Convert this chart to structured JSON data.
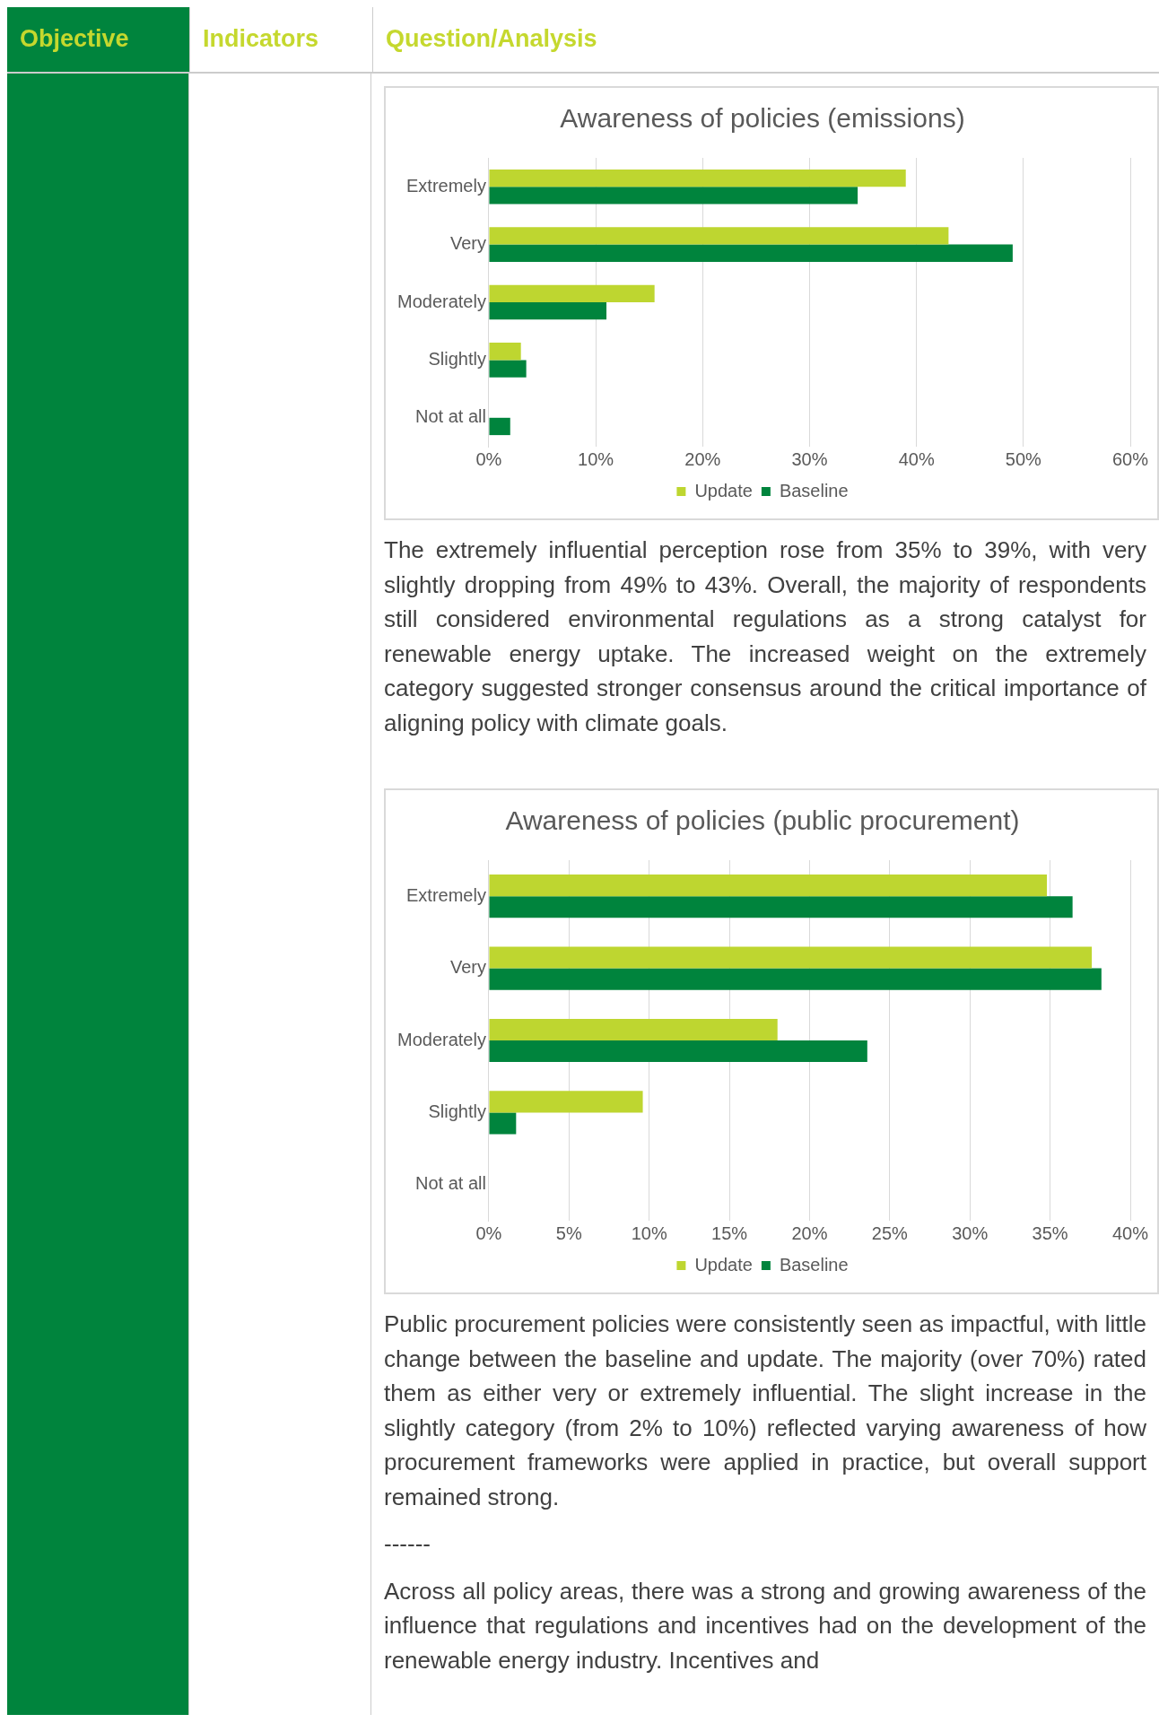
{
  "chart_data": [
    {
      "type": "other",
      "annotations": [
        "Objective",
        "Indicators",
        "Question/Analysis"
      ]
    },
    {
      "type": "bar",
      "orientation": "horizontal",
      "title": "Awareness of policies (emissions)",
      "categories": [
        "Extremely",
        "Very",
        "Moderately",
        "Slightly",
        "Not at all"
      ],
      "series": [
        {
          "name": "Update",
          "color": "#bed630",
          "values": [
            39,
            43,
            15.5,
            3,
            0
          ]
        },
        {
          "name": "Baseline",
          "color": "#00843d",
          "values": [
            34.5,
            49,
            11,
            3.5,
            2
          ]
        }
      ],
      "xlim": [
        0,
        60
      ],
      "xticks": [
        {
          "value": 0,
          "label": "0%"
        },
        {
          "value": 10,
          "label": "10%"
        },
        {
          "value": 20,
          "label": "20%"
        },
        {
          "value": 30,
          "label": "30%"
        },
        {
          "value": 40,
          "label": "40%"
        },
        {
          "value": 50,
          "label": "50%"
        },
        {
          "value": 60,
          "label": "60%"
        }
      ],
      "grid": "x",
      "legend": "bottom",
      "annotations": [
        "The extremely influential perception rose from 35% to 39%, with very slightly dropping from 49% to 43%. Overall, the majority of respondents still considered environmental regulations as a strong catalyst for renewable energy uptake. The increased weight on the extremely category suggested stronger consensus around the critical importance of aligning policy with climate goals."
      ]
    },
    {
      "type": "bar",
      "orientation": "horizontal",
      "title": "Awareness of policies (public procurement)",
      "categories": [
        "Extremely",
        "Very",
        "Moderately",
        "Slightly",
        "Not at all"
      ],
      "series": [
        {
          "name": "Update",
          "color": "#bed630",
          "values": [
            34.8,
            37.6,
            18,
            9.6,
            0
          ]
        },
        {
          "name": "Baseline",
          "color": "#00843d",
          "values": [
            36.4,
            38.2,
            23.6,
            1.7,
            0
          ]
        }
      ],
      "xlim": [
        0,
        40
      ],
      "xticks": [
        {
          "value": 0,
          "label": "0%"
        },
        {
          "value": 5,
          "label": "5%"
        },
        {
          "value": 10,
          "label": "10%"
        },
        {
          "value": 15,
          "label": "15%"
        },
        {
          "value": 20,
          "label": "20%"
        },
        {
          "value": 25,
          "label": "25%"
        },
        {
          "value": 30,
          "label": "30%"
        },
        {
          "value": 35,
          "label": "35%"
        },
        {
          "value": 40,
          "label": "40%"
        }
      ],
      "grid": "x",
      "legend": "bottom",
      "annotations": [
        "Public procurement policies were consistently seen as impactful, with little change between the baseline and update. The majority (over 70%) rated them as either very or extremely influential. The slight increase in the slightly category (from 2% to 10%) reflected varying awareness of how procurement frameworks were applied in practice, but overall support remained strong.",
        "------",
        "Across all policy areas, there was a strong and growing awareness of the influence that regulations and incentives had on the development of the renewable energy industry. Incentives and"
      ]
    }
  ]
}
